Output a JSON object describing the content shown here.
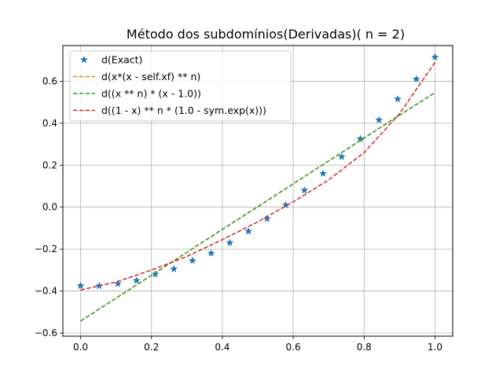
{
  "chart_data": {
    "type": "line",
    "title": "Método dos subdomínios(Derivadas)( n = 2)",
    "xlabel": "",
    "ylabel": "",
    "xlim": [
      -0.05,
      1.05
    ],
    "ylim": [
      -0.615,
      0.77
    ],
    "xticks": [
      0.0,
      0.2,
      0.4,
      0.6,
      0.8,
      1.0
    ],
    "xtick_labels": [
      "0.0",
      "0.2",
      "0.4",
      "0.6",
      "0.8",
      "1.0"
    ],
    "yticks": [
      -0.6,
      -0.4,
      -0.2,
      0.0,
      0.2,
      0.4,
      0.6
    ],
    "ytick_labels": [
      "−0.6",
      "−0.4",
      "−0.2",
      "0.0",
      "0.2",
      "0.4",
      "0.6"
    ],
    "grid": true,
    "legend_position": "top-left",
    "series": [
      {
        "name": "d(Exact)",
        "style": "star-markers",
        "color": "#1f77b4",
        "x": [
          0.0,
          0.0526,
          0.1053,
          0.1579,
          0.2105,
          0.2632,
          0.3158,
          0.3684,
          0.4211,
          0.4737,
          0.5263,
          0.5789,
          0.6316,
          0.6842,
          0.7368,
          0.7895,
          0.8421,
          0.8947,
          0.9474,
          1.0
        ],
        "y": [
          -0.375,
          -0.375,
          -0.365,
          -0.35,
          -0.32,
          -0.295,
          -0.255,
          -0.22,
          -0.17,
          -0.115,
          -0.055,
          0.01,
          0.08,
          0.16,
          0.24,
          0.325,
          0.415,
          0.515,
          0.61,
          0.715
        ]
      },
      {
        "name": "d(x*(x - self.xf) ** n)",
        "style": "dashed",
        "color": "#ff7f0e",
        "x": [
          0.0,
          0.1,
          0.2,
          0.3,
          0.4,
          0.5,
          0.6,
          0.7,
          0.8,
          0.9,
          1.0
        ],
        "y": [
          -0.543,
          -0.434,
          -0.325,
          -0.215,
          -0.106,
          0.002,
          0.111,
          0.22,
          0.329,
          0.438,
          0.546
        ]
      },
      {
        "name": "d((x ** n) * (x - 1.0))",
        "style": "dashed",
        "color": "#2ca02c",
        "x": [
          0.0,
          0.1,
          0.2,
          0.3,
          0.4,
          0.5,
          0.6,
          0.7,
          0.8,
          0.9,
          1.0
        ],
        "y": [
          -0.543,
          -0.434,
          -0.325,
          -0.215,
          -0.106,
          0.002,
          0.111,
          0.22,
          0.329,
          0.438,
          0.546
        ]
      },
      {
        "name": "d((1 - x) ** n * (1.0 - sym.exp(x)))",
        "style": "dashed",
        "color": "#d62728",
        "x": [
          0.0,
          0.1,
          0.2,
          0.3,
          0.4,
          0.5,
          0.6,
          0.7,
          0.8,
          0.9,
          1.0
        ],
        "y": [
          -0.395,
          -0.357,
          -0.3,
          -0.235,
          -0.155,
          -0.07,
          0.025,
          0.13,
          0.26,
          0.445,
          0.69
        ]
      }
    ]
  }
}
